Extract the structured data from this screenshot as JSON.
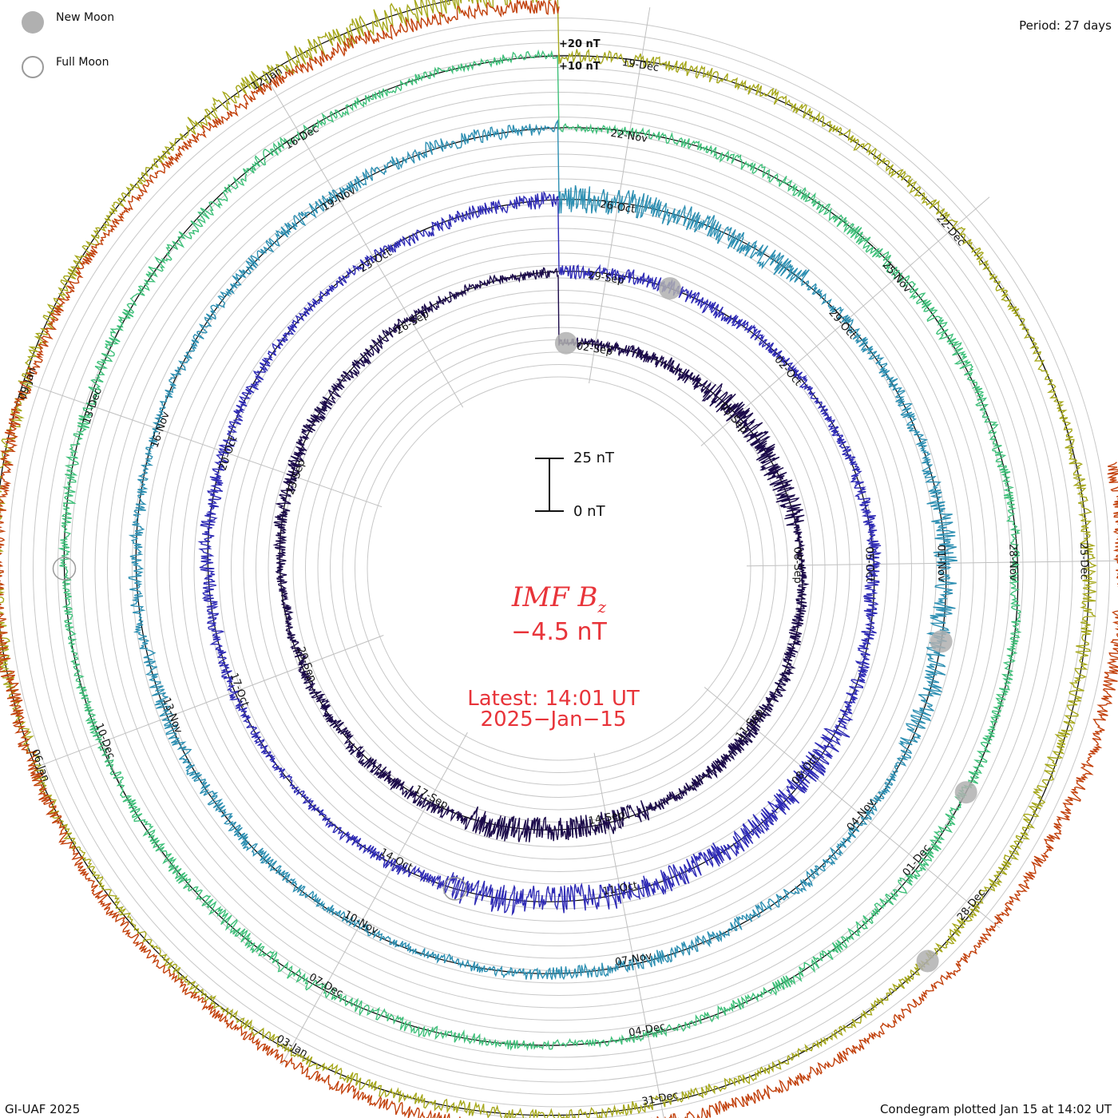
{
  "legend": {
    "new_moon_label": "New Moon",
    "full_moon_label": "Full Moon",
    "new_moon_color": "#b0b0b0",
    "full_moon_color": "#9a9a9a"
  },
  "period_label": "Period: 27 days",
  "credit": "GI-UAF 2025",
  "plotted_note": "Condegram plotted Jan 15 at 14:02 UT",
  "center": {
    "title_main": "IMF B",
    "title_sub": "z",
    "current_value": "−4.5 nT",
    "latest_line": "Latest: 14:01 UT",
    "date_line": "2025−Jan−15"
  },
  "scale_bar": {
    "top_label": "25 nT",
    "bottom_label": "0 nT"
  },
  "ref_labels": {
    "plus20": "+20 nT",
    "plus10": "+10 nT"
  },
  "chart_data": {
    "type": "condegram (spiral time series)",
    "quantity": "IMF Bz",
    "units": "nT",
    "period_days": 27,
    "rotations": [
      {
        "index": 0,
        "color": "#1b0a4a",
        "date_labels": [
          "02-Sep",
          "05-Sep",
          "08-Sep",
          "11-Sep",
          "14-Sep",
          "17-Sep",
          "20-Sep",
          "23-Sep",
          "26-Sep"
        ],
        "event_mags": [
          0,
          0.8,
          0,
          0,
          1,
          0,
          0,
          0,
          0
        ]
      },
      {
        "index": 1,
        "color": "#2e2ab5",
        "date_labels": [
          "29-Sep",
          "02-Oct",
          "05-Oct",
          "08-Oct",
          "11-Oct",
          "14-Oct",
          "17-Oct",
          "20-Oct",
          "23-Oct"
        ],
        "event_mags": [
          0,
          0,
          0,
          1,
          1,
          0,
          0,
          0,
          0
        ]
      },
      {
        "index": 2,
        "color": "#2d8fb2",
        "date_labels": [
          "26-Oct",
          "29-Oct",
          "01-Nov",
          "04-Nov",
          "07-Nov",
          "10-Nov",
          "13-Nov",
          "16-Nov",
          "19-Nov"
        ],
        "event_mags": [
          1,
          0,
          0.8,
          0,
          0,
          0,
          0,
          0,
          0
        ]
      },
      {
        "index": 3,
        "color": "#3fc07a",
        "date_labels": [
          "22-Nov",
          "25-Nov",
          "28-Nov",
          "01-Dec",
          "04-Dec",
          "07-Dec",
          "10-Dec",
          "13-Dec",
          "16-Dec"
        ],
        "event_mags": [
          0,
          0,
          0,
          0,
          0,
          0,
          0,
          0,
          0
        ]
      },
      {
        "index": 4,
        "color": "#a6a81c",
        "date_labels": [
          "19-Dec",
          "22-Dec",
          "25-Dec",
          "28-Dec",
          "31-Dec",
          "03-Jan",
          "06-Jan",
          "09-Jan",
          "12-Jan"
        ],
        "event_mags": [
          0,
          0,
          0,
          0,
          0,
          0,
          0,
          0,
          1
        ]
      },
      {
        "index": 5,
        "color": "#c2410c",
        "date_labels": [],
        "event_mags": []
      }
    ],
    "latest_bz_nT": -4.5,
    "latest_time": "14:01 UT",
    "latest_date": "2025-Jan-15"
  }
}
